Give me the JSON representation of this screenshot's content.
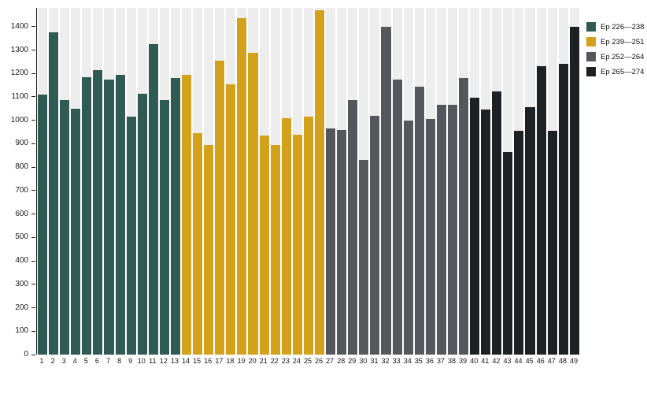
{
  "chart_data": {
    "type": "bar",
    "title": "",
    "xlabel": "",
    "ylabel": "",
    "ylim": [
      0,
      1480
    ],
    "yticks": [
      0,
      100,
      200,
      300,
      400,
      500,
      600,
      700,
      800,
      900,
      1000,
      1100,
      1200,
      1300,
      1400
    ],
    "categories": [
      "1",
      "2",
      "3",
      "4",
      "5",
      "6",
      "7",
      "8",
      "9",
      "10",
      "11",
      "12",
      "13",
      "14",
      "15",
      "16",
      "17",
      "18",
      "19",
      "20",
      "21",
      "22",
      "23",
      "24",
      "25",
      "26",
      "27",
      "28",
      "29",
      "30",
      "31",
      "32",
      "33",
      "34",
      "35",
      "36",
      "37",
      "38",
      "39",
      "40",
      "41",
      "42",
      "43",
      "44",
      "45",
      "46",
      "47",
      "48",
      "49"
    ],
    "series": [
      {
        "name": "Ep 226—238",
        "color": "#305a54",
        "values": [
          1110,
          1375,
          1085,
          1050,
          1185,
          1215,
          1175,
          1195,
          1015,
          1115,
          1325,
          1085,
          1180
        ]
      },
      {
        "name": "Ep 239—251",
        "color": "#d4a11d",
        "values": [
          1195,
          945,
          895,
          1255,
          1155,
          1435,
          1290,
          935,
          895,
          1010,
          940,
          1015,
          1470
        ]
      },
      {
        "name": "Ep 252—264",
        "color": "#54585c",
        "values": [
          965,
          960,
          1085,
          830,
          1020,
          1400,
          1175,
          1000,
          1145,
          1005,
          1065,
          1065,
          1180
        ]
      },
      {
        "name": "Ep 265—274",
        "color": "#1e2124",
        "values": [
          1095,
          1045,
          1125,
          865,
          955,
          1055,
          1230,
          955,
          1240,
          1400
        ]
      }
    ],
    "legend_position": "top-right",
    "grid": false,
    "band_color": "#ededed",
    "axis_color": "#1a1a1a"
  }
}
